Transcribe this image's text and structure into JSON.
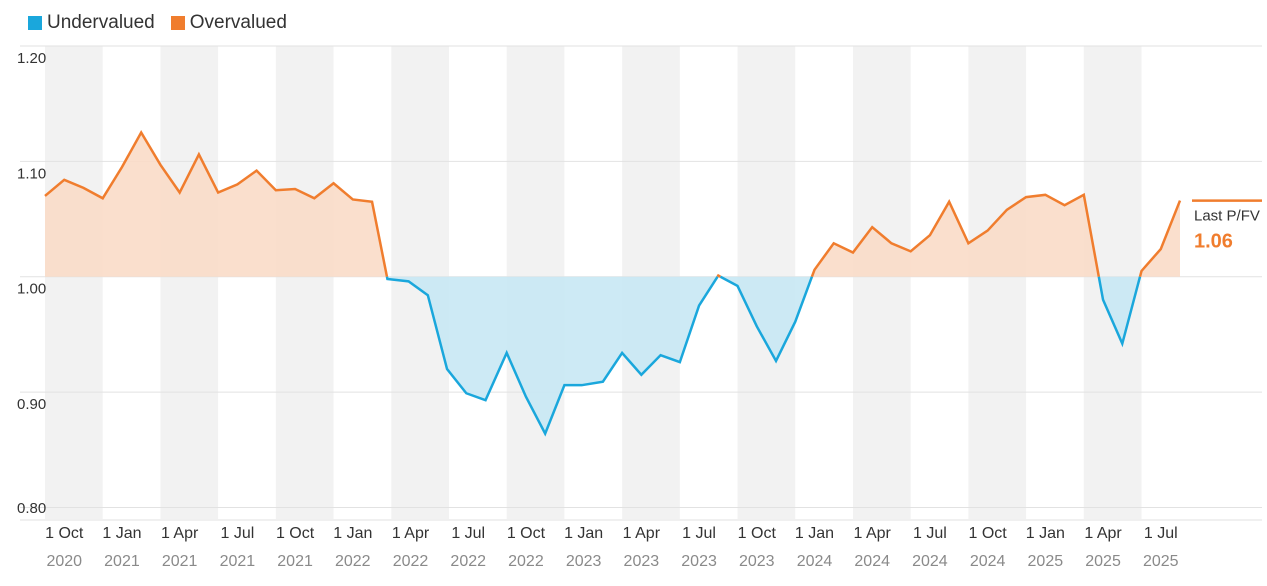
{
  "legend": {
    "under_label": "Undervalued",
    "over_label": "Overvalued"
  },
  "colors": {
    "undervalued": "#1aa7dc",
    "overvalued": "#f07d2e",
    "under_fill": "#c8e8f4",
    "over_fill": "#f9dbc8",
    "band": "#f2f2f2",
    "grid": "#e2e2e2"
  },
  "last": {
    "label": "Last P/FV",
    "value": "1.06"
  },
  "chart_data": {
    "type": "area",
    "baseline": 1.0,
    "ylim": [
      0.79,
      1.2
    ],
    "yticks": [
      "0.80",
      "0.90",
      "1.00",
      "1.10",
      "1.20"
    ],
    "ytick_values": [
      0.8,
      0.9,
      1.0,
      1.1,
      1.2
    ],
    "xticks": [
      {
        "line1": "1 Oct",
        "line2": "2020",
        "month": 9
      },
      {
        "line1": "1 Jan",
        "line2": "2021",
        "month": 12
      },
      {
        "line1": "1 Apr",
        "line2": "2021",
        "month": 15
      },
      {
        "line1": "1 Jul",
        "line2": "2021",
        "month": 18
      },
      {
        "line1": "1 Oct",
        "line2": "2021",
        "month": 21
      },
      {
        "line1": "1 Jan",
        "line2": "2022",
        "month": 24
      },
      {
        "line1": "1 Apr",
        "line2": "2022",
        "month": 27
      },
      {
        "line1": "1 Jul",
        "line2": "2022",
        "month": 30
      },
      {
        "line1": "1 Oct",
        "line2": "2022",
        "month": 33
      },
      {
        "line1": "1 Jan",
        "line2": "2023",
        "month": 36
      },
      {
        "line1": "1 Apr",
        "line2": "2023",
        "month": 39
      },
      {
        "line1": "1 Jul",
        "line2": "2023",
        "month": 42
      },
      {
        "line1": "1 Oct",
        "line2": "2023",
        "month": 45
      },
      {
        "line1": "1 Jan",
        "line2": "2024",
        "month": 48
      },
      {
        "line1": "1 Apr",
        "line2": "2024",
        "month": 51
      },
      {
        "line1": "1 Jul",
        "line2": "2024",
        "month": 54
      },
      {
        "line1": "1 Oct",
        "line2": "2024",
        "month": 57
      },
      {
        "line1": "1 Jan",
        "line2": "2025",
        "month": 60
      },
      {
        "line1": "1 Apr",
        "line2": "2025",
        "month": 63
      },
      {
        "line1": "1 Jul",
        "line2": "2025",
        "month": 66
      }
    ],
    "x_start_month": 8,
    "x_end_month": 67,
    "points": [
      [
        8.0,
        1.07
      ],
      [
        9.0,
        1.084
      ],
      [
        10.0,
        1.077
      ],
      [
        11.0,
        1.068
      ],
      [
        12.0,
        1.095
      ],
      [
        13.0,
        1.125
      ],
      [
        14.0,
        1.097
      ],
      [
        15.0,
        1.073
      ],
      [
        16.0,
        1.106
      ],
      [
        17.0,
        1.073
      ],
      [
        18.0,
        1.08
      ],
      [
        19.0,
        1.092
      ],
      [
        20.0,
        1.075
      ],
      [
        21.0,
        1.076
      ],
      [
        22.0,
        1.068
      ],
      [
        23.0,
        1.081
      ],
      [
        24.0,
        1.067
      ],
      [
        25.0,
        1.065
      ],
      [
        25.8,
        0.998
      ],
      [
        26.9,
        0.996
      ],
      [
        27.9,
        0.984
      ],
      [
        28.9,
        0.92
      ],
      [
        29.9,
        0.899
      ],
      [
        30.9,
        0.893
      ],
      [
        32.0,
        0.934
      ],
      [
        33.0,
        0.896
      ],
      [
        34.0,
        0.864
      ],
      [
        35.0,
        0.906
      ],
      [
        35.9,
        0.906
      ],
      [
        37.0,
        0.909
      ],
      [
        38.0,
        0.934
      ],
      [
        39.0,
        0.915
      ],
      [
        40.0,
        0.932
      ],
      [
        41.0,
        0.926
      ],
      [
        42.0,
        0.975
      ],
      [
        43.0,
        1.001
      ],
      [
        44.0,
        0.992
      ],
      [
        45.0,
        0.957
      ],
      [
        46.0,
        0.927
      ],
      [
        47.0,
        0.961
      ],
      [
        48.0,
        1.006
      ],
      [
        49.0,
        1.029
      ],
      [
        50.0,
        1.021
      ],
      [
        51.0,
        1.043
      ],
      [
        52.0,
        1.029
      ],
      [
        53.0,
        1.022
      ],
      [
        54.0,
        1.036
      ],
      [
        55.0,
        1.065
      ],
      [
        56.0,
        1.029
      ],
      [
        57.0,
        1.04
      ],
      [
        58.0,
        1.058
      ],
      [
        59.0,
        1.069
      ],
      [
        60.0,
        1.071
      ],
      [
        61.0,
        1.062
      ],
      [
        62.0,
        1.071
      ],
      [
        63.0,
        0.98
      ],
      [
        64.0,
        0.942
      ],
      [
        65.0,
        1.005
      ],
      [
        66.0,
        1.024
      ],
      [
        67.0,
        1.066
      ]
    ]
  }
}
